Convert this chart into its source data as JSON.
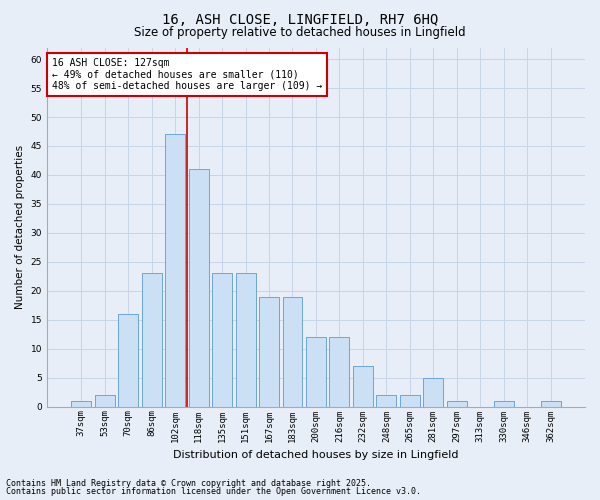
{
  "title_line1": "16, ASH CLOSE, LINGFIELD, RH7 6HQ",
  "title_line2": "Size of property relative to detached houses in Lingfield",
  "xlabel": "Distribution of detached houses by size in Lingfield",
  "ylabel": "Number of detached properties",
  "categories": [
    "37sqm",
    "53sqm",
    "70sqm",
    "86sqm",
    "102sqm",
    "118sqm",
    "135sqm",
    "151sqm",
    "167sqm",
    "183sqm",
    "200sqm",
    "216sqm",
    "232sqm",
    "248sqm",
    "265sqm",
    "281sqm",
    "297sqm",
    "313sqm",
    "330sqm",
    "346sqm",
    "362sqm"
  ],
  "values": [
    1,
    2,
    16,
    23,
    47,
    41,
    23,
    23,
    19,
    19,
    12,
    12,
    7,
    2,
    2,
    5,
    1,
    0,
    1,
    0,
    1
  ],
  "bar_color": "#cce0f5",
  "bar_edge_color": "#5b9bd5",
  "grid_color": "#c8d4e8",
  "bg_color": "#e8eef8",
  "vline_color": "#cc0000",
  "vline_index": 5,
  "annotation_text": "16 ASH CLOSE: 127sqm\n← 49% of detached houses are smaller (110)\n48% of semi-detached houses are larger (109) →",
  "annotation_box_color": "#ffffff",
  "annotation_edge_color": "#cc0000",
  "footer_line1": "Contains HM Land Registry data © Crown copyright and database right 2025.",
  "footer_line2": "Contains public sector information licensed under the Open Government Licence v3.0.",
  "ylim": [
    0,
    62
  ],
  "yticks": [
    0,
    5,
    10,
    15,
    20,
    25,
    30,
    35,
    40,
    45,
    50,
    55,
    60
  ],
  "title_fontsize": 10,
  "subtitle_fontsize": 8.5,
  "ylabel_fontsize": 7.5,
  "xlabel_fontsize": 8,
  "tick_fontsize": 6.5,
  "annotation_fontsize": 7,
  "footer_fontsize": 6
}
